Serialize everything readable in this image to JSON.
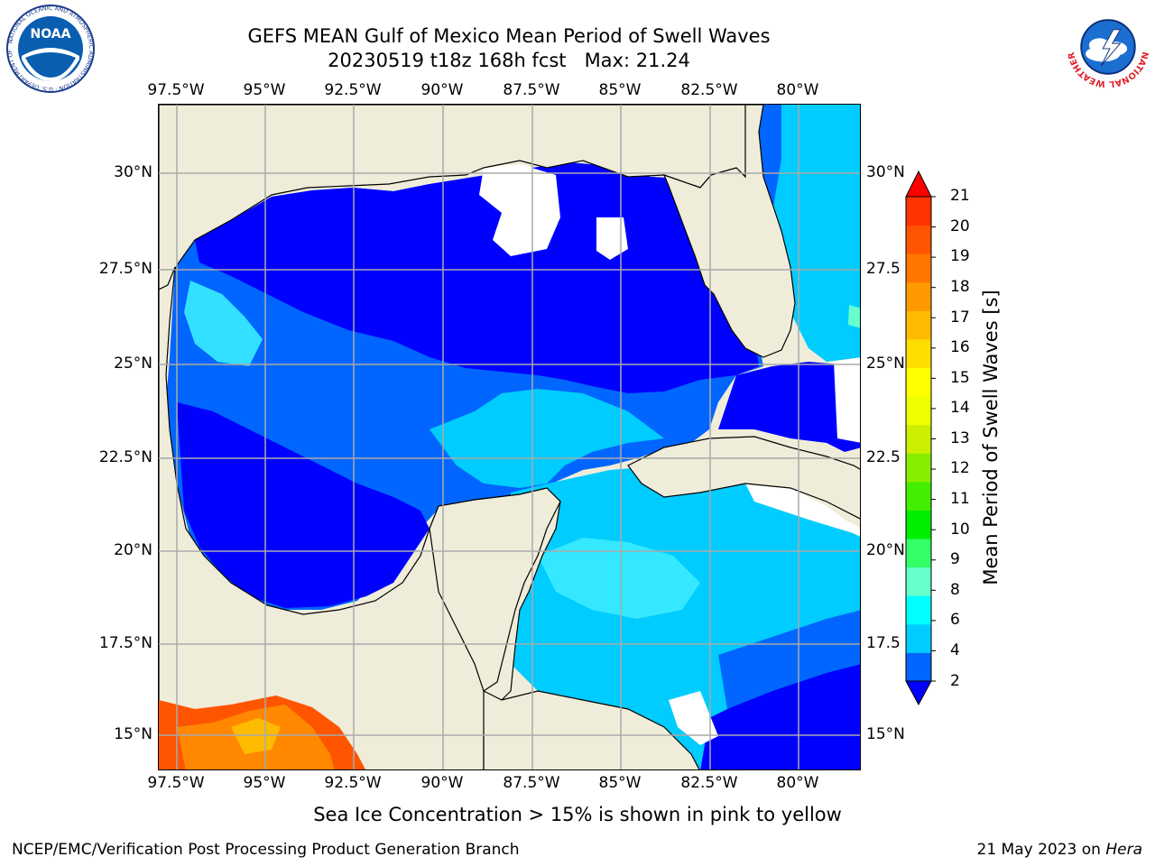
{
  "header": {
    "title": "GEFS MEAN Gulf of Mexico Mean Period of Swell Waves",
    "subtitle": "20230519 t18z 168h fcst   Max: 21.24"
  },
  "map": {
    "lon_ticks": [
      "97.5°W",
      "95°W",
      "92.5°W",
      "90°W",
      "87.5°W",
      "85°W",
      "82.5°W",
      "80°W"
    ],
    "lat_ticks_left": [
      "30°N",
      "27.5°N",
      "25°N",
      "22.5°N",
      "20°N",
      "17.5°N",
      "15°N"
    ],
    "lat_ticks_right": [
      "30°N",
      "27.5",
      "25°N",
      "22.5",
      "20°N",
      "17.5",
      "15°N"
    ],
    "land_color": "#efedda",
    "gridline_color": "#aaaaaa"
  },
  "colorbar": {
    "title": "Mean Period of Swell Waves [s]",
    "labels": [
      "21",
      "20",
      "19",
      "18",
      "17",
      "16",
      "15",
      "14",
      "13",
      "12",
      "11",
      "10",
      "9",
      "8",
      "6",
      "4",
      "2"
    ],
    "colors": [
      "#0000ff",
      "#0066ff",
      "#00ccff",
      "#00ffff",
      "#66ffcc",
      "#33ff66",
      "#00ee00",
      "#44ee00",
      "#88ee00",
      "#ccee00",
      "#eeff00",
      "#ffff00",
      "#ffdd00",
      "#ffbb00",
      "#ff9900",
      "#ff7700",
      "#ff5500",
      "#ff3300",
      "#ff0000"
    ]
  },
  "footer": {
    "note": "Sea Ice Concentration > 15% is shown in pink to yellow",
    "credit": "NCEP/EMC/Verification Post Processing Product Generation Branch",
    "date": "21 May 2023 on",
    "machine": "Hera"
  },
  "logos": {
    "left": "NOAA",
    "left_ring": "NATIONAL OCEANIC AND ATMOSPHERIC ADMINISTRATION · U.S. DEPARTMENT OF COMMERCE",
    "right_ring": "NATIONAL WEATHER SERVICE"
  }
}
